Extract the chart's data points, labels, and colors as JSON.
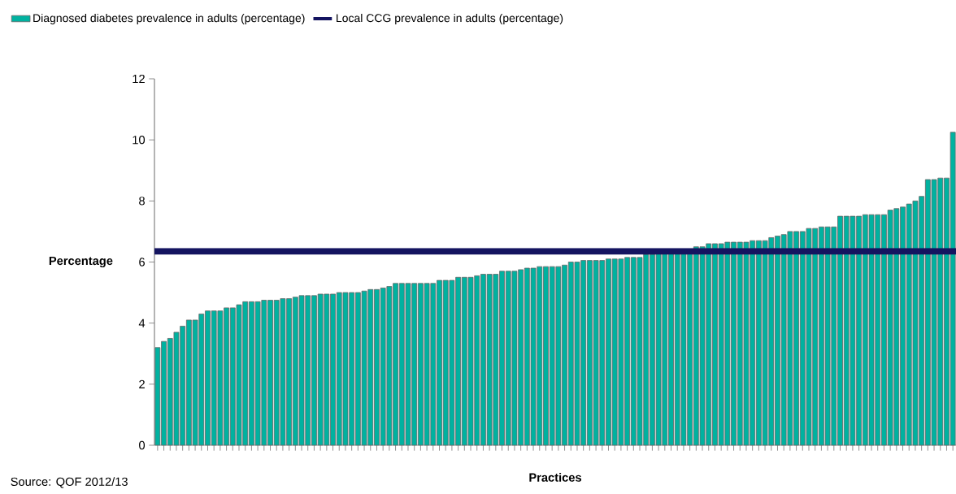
{
  "chart_data": {
    "type": "bar",
    "categories": [
      null,
      null,
      null,
      null,
      null,
      null,
      null,
      null,
      null,
      null,
      null,
      null,
      null,
      null,
      null,
      null,
      null,
      null,
      null,
      null,
      null,
      null,
      null,
      null,
      null,
      null,
      null,
      null,
      null,
      null,
      null,
      null,
      null,
      null,
      null,
      null,
      null,
      null,
      null,
      null,
      null,
      null,
      null,
      null,
      null,
      null,
      null,
      null,
      null,
      null,
      null,
      null,
      null,
      null,
      null,
      null,
      null,
      null,
      null,
      null,
      null,
      null,
      null,
      null,
      null,
      null,
      null,
      null,
      null,
      null,
      null,
      null,
      null,
      null,
      null,
      null,
      null,
      null,
      null,
      null,
      null,
      null,
      null,
      null,
      null,
      null,
      null,
      null,
      null,
      null,
      null,
      null,
      null,
      null,
      null,
      null,
      null,
      null,
      null,
      null,
      null,
      null,
      null,
      null,
      null,
      null,
      null,
      null,
      null,
      null,
      null,
      null,
      null,
      null,
      null,
      null,
      null,
      null,
      null,
      null,
      null,
      null,
      null,
      null,
      null,
      null,
      null,
      null
    ],
    "series": [
      {
        "name": "Diagnosed diabetes prevalence in adults (percentage)",
        "color": "#00b2a0",
        "values": [
          3.2,
          3.4,
          3.5,
          3.7,
          3.9,
          4.1,
          4.1,
          4.3,
          4.4,
          4.4,
          4.4,
          4.5,
          4.5,
          4.6,
          4.7,
          4.7,
          4.7,
          4.75,
          4.75,
          4.75,
          4.8,
          4.8,
          4.85,
          4.9,
          4.9,
          4.9,
          4.95,
          4.95,
          4.95,
          5.0,
          5.0,
          5.0,
          5.0,
          5.05,
          5.1,
          5.1,
          5.15,
          5.2,
          5.3,
          5.3,
          5.3,
          5.3,
          5.3,
          5.3,
          5.3,
          5.4,
          5.4,
          5.4,
          5.5,
          5.5,
          5.5,
          5.55,
          5.6,
          5.6,
          5.6,
          5.7,
          5.7,
          5.7,
          5.75,
          5.8,
          5.8,
          5.85,
          5.85,
          5.85,
          5.85,
          5.9,
          6.0,
          6.0,
          6.05,
          6.05,
          6.05,
          6.05,
          6.1,
          6.1,
          6.1,
          6.15,
          6.15,
          6.15,
          6.25,
          6.25,
          6.3,
          6.3,
          6.3,
          6.3,
          6.35,
          6.35,
          6.5,
          6.5,
          6.6,
          6.6,
          6.6,
          6.65,
          6.65,
          6.65,
          6.65,
          6.7,
          6.7,
          6.7,
          6.8,
          6.85,
          6.9,
          7.0,
          7.0,
          7.0,
          7.1,
          7.1,
          7.15,
          7.15,
          7.15,
          7.5,
          7.5,
          7.5,
          7.5,
          7.55,
          7.55,
          7.55,
          7.55,
          7.7,
          7.75,
          7.8,
          7.9,
          8.0,
          8.15,
          8.7,
          8.7,
          8.75,
          8.75,
          10.25
        ]
      }
    ],
    "ref_lines": [
      {
        "axis": "y",
        "value": 6.35,
        "label": "Local CCG prevalence in adults (percentage)",
        "color": "#141460"
      }
    ],
    "ylabel": "Percentage",
    "xlabel": "Practices",
    "annotations": [
      "Source: QOF 2012/13"
    ],
    "ylim": [
      0,
      12
    ],
    "yticks": [
      0,
      2,
      4,
      6,
      8,
      10,
      12
    ],
    "tick_labels": "y",
    "legend": "top left"
  }
}
